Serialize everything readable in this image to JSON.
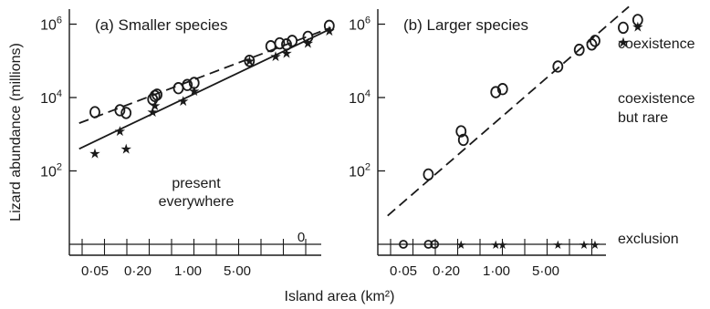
{
  "figure": {
    "ylabel": "Lizard abundance (millions)",
    "xlabel": "Island area (km²)",
    "x_ticks": [
      "0·05",
      "0·20",
      "1·00",
      "5·00"
    ],
    "y_ticks": [
      "10",
      "10",
      "10"
    ],
    "y_tick_exponents": [
      "6",
      "4",
      "2"
    ],
    "colors": {
      "ink": "#1a1a1a",
      "background": "#ffffff"
    }
  },
  "chart_data": [
    {
      "type": "scatter",
      "title": "(a) Smaller species",
      "xlabel": "Island area (km²)",
      "ylabel": "Lizard abundance (millions)",
      "x_scale": "log",
      "y_scale": "log",
      "zero_label": "0",
      "annotations": [
        "present",
        "everywhere"
      ],
      "circles": [
        {
          "x": 0.02,
          "y": 4000
        },
        {
          "x": 0.045,
          "y": 4500
        },
        {
          "x": 0.055,
          "y": 3800
        },
        {
          "x": 0.13,
          "y": 9000
        },
        {
          "x": 0.14,
          "y": 11000
        },
        {
          "x": 0.15,
          "y": 12000
        },
        {
          "x": 0.3,
          "y": 18000
        },
        {
          "x": 0.4,
          "y": 22000
        },
        {
          "x": 0.5,
          "y": 25000
        },
        {
          "x": 3,
          "y": 100000
        },
        {
          "x": 6,
          "y": 250000
        },
        {
          "x": 8,
          "y": 300000
        },
        {
          "x": 10,
          "y": 280000
        },
        {
          "x": 12,
          "y": 350000
        },
        {
          "x": 20,
          "y": 450000
        },
        {
          "x": 40,
          "y": 900000
        }
      ],
      "stars": [
        {
          "x": 0.02,
          "y": 300
        },
        {
          "x": 0.045,
          "y": 1200
        },
        {
          "x": 0.055,
          "y": 400
        },
        {
          "x": 0.13,
          "y": 4000
        },
        {
          "x": 0.14,
          "y": 6000
        },
        {
          "x": 0.35,
          "y": 8000
        },
        {
          "x": 0.5,
          "y": 15000
        },
        {
          "x": 3,
          "y": 100000
        },
        {
          "x": 7,
          "y": 130000
        },
        {
          "x": 10,
          "y": 160000
        },
        {
          "x": 20,
          "y": 300000
        },
        {
          "x": 40,
          "y": 650000
        }
      ],
      "fit_lines": [
        {
          "style": "dashed",
          "x": [
            0.012,
            42
          ],
          "y": [
            2000,
            800000
          ]
        },
        {
          "style": "solid",
          "x": [
            0.012,
            42
          ],
          "y": [
            400,
            750000
          ]
        }
      ]
    },
    {
      "type": "scatter",
      "title": "(b) Larger species",
      "xlabel": "Island area (km²)",
      "ylabel": "Lizard abundance (millions)",
      "x_scale": "log",
      "y_scale": "log",
      "annotations": [
        "coexistence",
        "coexistence",
        "but rare",
        "exclusion"
      ],
      "circles": [
        {
          "x": 0.045,
          "y": 80
        },
        {
          "x": 0.13,
          "y": 1200
        },
        {
          "x": 0.14,
          "y": 700
        },
        {
          "x": 0.4,
          "y": 14000
        },
        {
          "x": 0.5,
          "y": 17000
        },
        {
          "x": 3,
          "y": 70000
        },
        {
          "x": 6,
          "y": 200000
        },
        {
          "x": 9,
          "y": 280000
        },
        {
          "x": 10,
          "y": 350000
        },
        {
          "x": 25,
          "y": 800000
        },
        {
          "x": 40,
          "y": 1300000
        }
      ],
      "stars": [
        {
          "x": 25,
          "y": 320000
        },
        {
          "x": 40,
          "y": 850000
        }
      ],
      "exclusion_points": [
        {
          "x": 0.02,
          "marker": "circle"
        },
        {
          "x": 0.045,
          "marker": "circle"
        },
        {
          "x": 0.055,
          "marker": "circle"
        },
        {
          "x": 0.13,
          "marker": "star"
        },
        {
          "x": 0.4,
          "marker": "star"
        },
        {
          "x": 0.5,
          "marker": "star"
        },
        {
          "x": 3,
          "marker": "star"
        },
        {
          "x": 7,
          "marker": "star"
        },
        {
          "x": 10,
          "marker": "star"
        }
      ],
      "fit_lines": [
        {
          "style": "dashed",
          "x": [
            0.012,
            30
          ],
          "y": [
            6,
            3000000
          ]
        }
      ]
    }
  ]
}
